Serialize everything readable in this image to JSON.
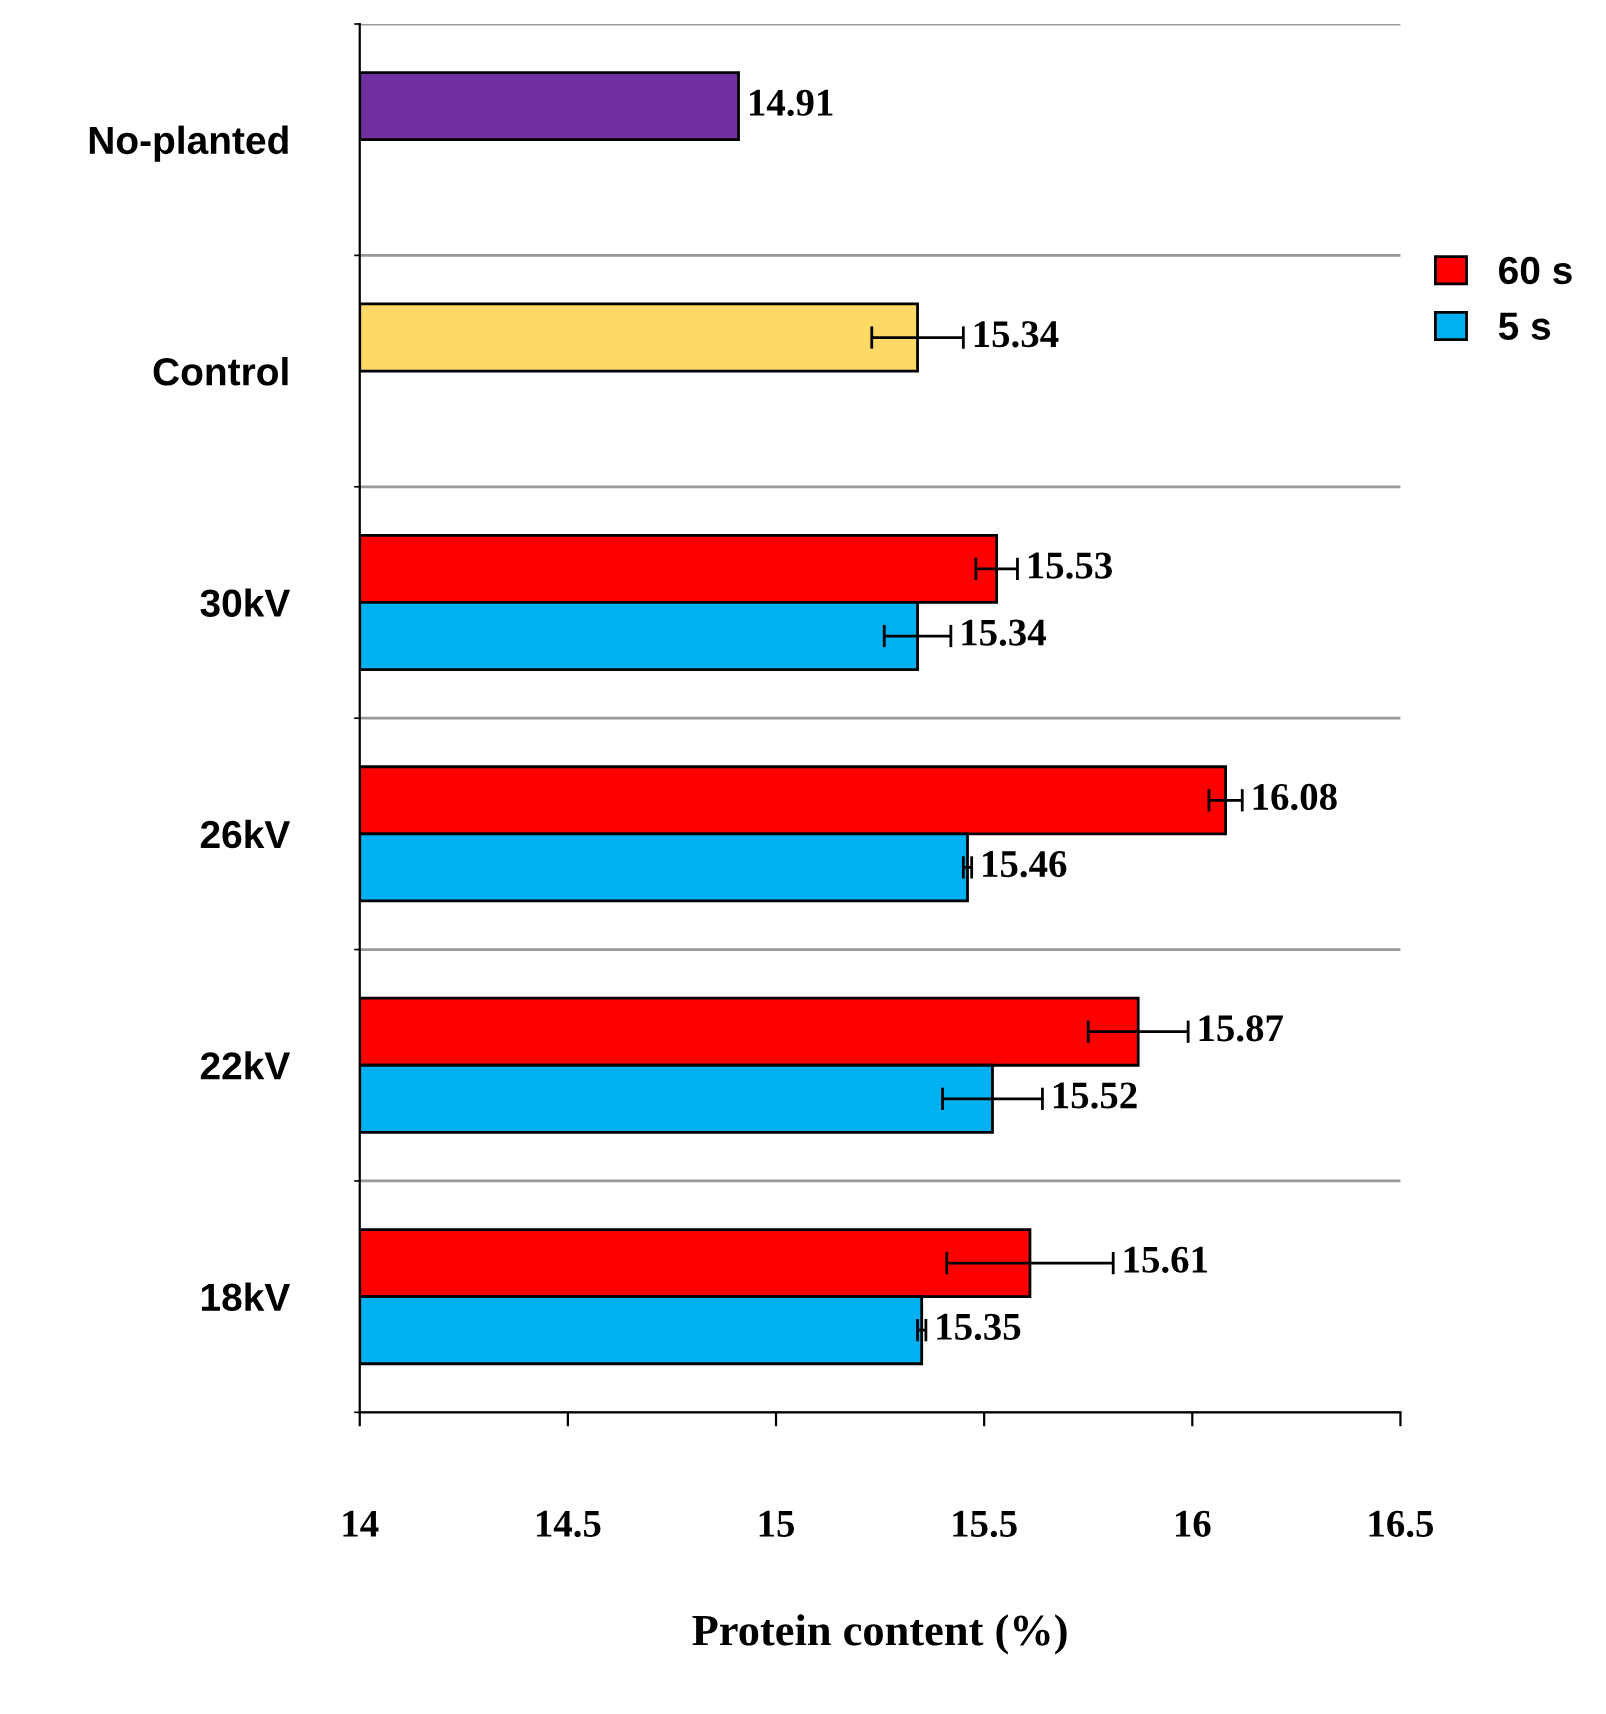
{
  "chart_data": {
    "type": "bar",
    "orientation": "horizontal",
    "categories": [
      "No-planted",
      "Control",
      "30kV",
      "26kV",
      "22kV",
      "18kV"
    ],
    "series": [
      {
        "color": "#7030a0",
        "values": [
          14.91,
          null,
          null,
          null,
          null,
          null
        ]
      },
      {
        "color": "#ffd966",
        "values": [
          null,
          15.34,
          null,
          null,
          null,
          null
        ],
        "errors": [
          null,
          0.11,
          null,
          null,
          null,
          null
        ]
      },
      {
        "name": "60 s",
        "color": "#ff0000",
        "values": [
          null,
          null,
          15.53,
          16.08,
          15.87,
          15.61
        ],
        "errors": [
          null,
          null,
          0.05,
          0.04,
          0.12,
          0.2
        ]
      },
      {
        "name": "5 s",
        "color": "#00b0f0",
        "values": [
          null,
          null,
          15.34,
          15.46,
          15.52,
          15.35
        ],
        "errors": [
          null,
          null,
          0.08,
          0.01,
          0.12,
          0.01
        ]
      }
    ],
    "xlim": [
      14,
      16.5
    ],
    "xticks": [
      14,
      14.5,
      15,
      15.5,
      16,
      16.5
    ],
    "xlabel": "Protein content (%)",
    "data_labels": true,
    "grid": "y",
    "legend": "right"
  }
}
